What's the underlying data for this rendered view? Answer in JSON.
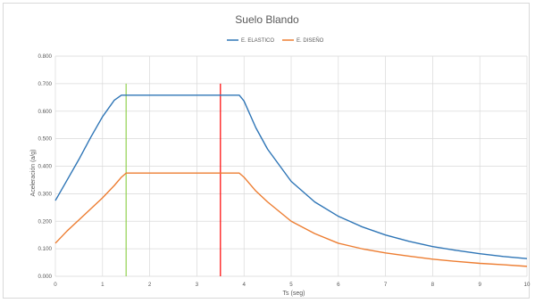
{
  "chart_data": {
    "type": "line",
    "title": "Suelo Blando",
    "xlabel": "Ts (seg)",
    "ylabel": "Aceleración (a/g)",
    "xlim": [
      0,
      10
    ],
    "ylim": [
      0,
      0.8
    ],
    "x_ticks": [
      "0",
      "1",
      "2",
      "3",
      "4",
      "5",
      "6",
      "7",
      "8",
      "9",
      "10"
    ],
    "y_ticks": [
      "0.000",
      "0.100",
      "0.200",
      "0.300",
      "0.400",
      "0.500",
      "0.600",
      "0.700",
      "0.800"
    ],
    "grid": true,
    "legend": "top-center",
    "series": [
      {
        "name": "E. ELASTICO",
        "color": "#2e75b6",
        "x": [
          0,
          0.25,
          0.5,
          0.75,
          1.0,
          1.25,
          1.4,
          1.5,
          2.0,
          2.5,
          3.0,
          3.5,
          3.9,
          4.0,
          4.25,
          4.5,
          5.0,
          5.5,
          6.0,
          6.5,
          7.0,
          7.5,
          8.0,
          8.5,
          9.0,
          9.5,
          10.0
        ],
        "y": [
          0.275,
          0.35,
          0.425,
          0.505,
          0.58,
          0.64,
          0.658,
          0.658,
          0.658,
          0.658,
          0.658,
          0.658,
          0.658,
          0.637,
          0.54,
          0.462,
          0.345,
          0.27,
          0.218,
          0.18,
          0.15,
          0.127,
          0.108,
          0.094,
          0.082,
          0.072,
          0.064
        ]
      },
      {
        "name": "E. DISEÑO",
        "color": "#ed7d31",
        "x": [
          0,
          0.25,
          0.5,
          0.75,
          1.0,
          1.25,
          1.4,
          1.5,
          2.0,
          2.5,
          3.0,
          3.5,
          3.9,
          4.0,
          4.25,
          4.5,
          5.0,
          5.5,
          6.0,
          6.5,
          7.0,
          7.5,
          8.0,
          8.5,
          9.0,
          9.5,
          10.0
        ],
        "y": [
          0.12,
          0.165,
          0.205,
          0.245,
          0.285,
          0.33,
          0.36,
          0.375,
          0.375,
          0.375,
          0.375,
          0.375,
          0.375,
          0.36,
          0.31,
          0.27,
          0.2,
          0.155,
          0.12,
          0.1,
          0.085,
          0.073,
          0.062,
          0.054,
          0.047,
          0.042,
          0.036
        ]
      }
    ],
    "vertical_markers": [
      {
        "x": 1.5,
        "y_top": 0.7,
        "color": "#92d050"
      },
      {
        "x": 3.5,
        "y_top": 0.7,
        "color": "#ff0000"
      }
    ]
  }
}
